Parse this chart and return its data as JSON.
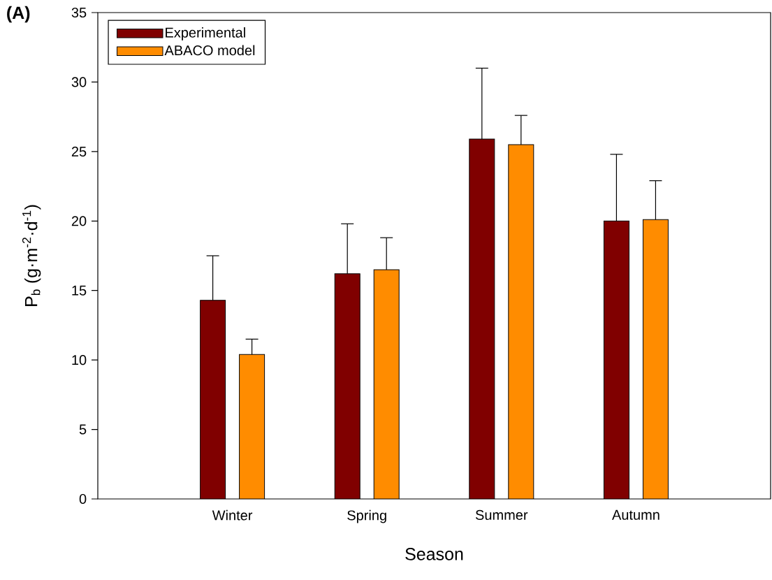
{
  "chart_data": {
    "type": "bar",
    "xlabel": "Season",
    "ylabel": "P$_{b}$ (g·m$^{-2}$·d$^{-1}$)",
    "categories": [
      "Winter",
      "Spring",
      "Summer",
      "Autumn"
    ],
    "series": [
      {
        "name": "Experimental",
        "color": "#800000",
        "values": [
          14.3,
          16.2,
          25.9,
          20.0
        ],
        "errors": [
          [
            14.3,
            17.5
          ],
          [
            16.2,
            19.8
          ],
          [
            25.9,
            31.0
          ],
          [
            20.0,
            24.8
          ]
        ]
      },
      {
        "name": "ABACO model",
        "color": "#ff8c00",
        "values": [
          10.4,
          16.5,
          25.5,
          20.1
        ],
        "errors": [
          [
            10.4,
            11.5
          ],
          [
            16.5,
            18.8
          ],
          [
            25.5,
            27.6
          ],
          [
            20.1,
            22.9
          ]
        ]
      }
    ],
    "ylim": [
      0,
      35
    ],
    "yticks": [
      0,
      5,
      10,
      15,
      20,
      25,
      30,
      35
    ],
    "legend": "top left",
    "grid": false,
    "annotations": [
      "(A)"
    ]
  }
}
